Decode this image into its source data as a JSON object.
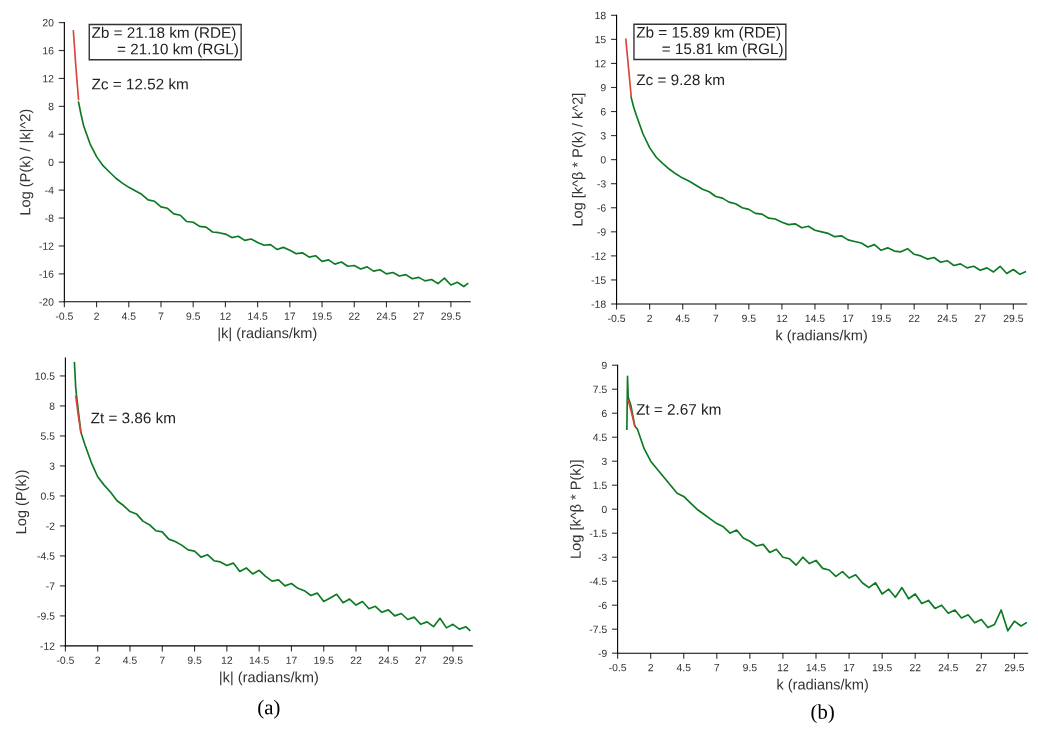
{
  "chart_data": [
    {
      "type": "line",
      "ylabel": "Log (P(k) / |k|^2)",
      "xlabel": "|k| (radians/km)",
      "xlim": [
        -0.5,
        31
      ],
      "xticks": [
        -0.5,
        2,
        4.5,
        7,
        9.5,
        12,
        14.5,
        17,
        19.5,
        22,
        24.5,
        27,
        29.5
      ],
      "ylim": [
        -20,
        20
      ],
      "yticks": [
        -20,
        -16,
        -12,
        -8,
        -4,
        0,
        4,
        8,
        12,
        16,
        20
      ],
      "annotations": [
        "Zb = 21.18 km (RDE)\n      = 21.10 km (RGL)",
        "Zc = 12.52 km"
      ],
      "series": [
        {
          "color": "#0b7a22",
          "x": [
            0.6,
            0.8,
            1,
            1.5,
            2,
            2.5,
            3,
            3.5,
            4,
            4.5,
            5,
            5.5,
            6,
            6.5,
            7,
            7.5,
            8,
            8.5,
            9,
            9.5,
            10,
            10.5,
            11,
            11.5,
            12,
            12.5,
            13,
            13.5,
            14,
            14.5,
            15,
            15.5,
            16,
            16.5,
            17,
            17.5,
            18,
            18.5,
            19,
            19.5,
            20,
            20.5,
            21,
            21.5,
            22,
            22.5,
            23,
            23.5,
            24,
            24.5,
            25,
            25.5,
            26,
            26.5,
            27,
            27.5,
            28,
            28.5,
            29,
            29.5,
            30,
            30.5,
            30.8
          ],
          "values": [
            8.6,
            6.8,
            5.2,
            2.6,
            0.8,
            -0.5,
            -1.4,
            -2.3,
            -3.0,
            -3.6,
            -4.1,
            -4.6,
            -5.4,
            -5.6,
            -6.4,
            -6.6,
            -7.4,
            -7.6,
            -8.5,
            -8.6,
            -9.2,
            -9.3,
            -10.0,
            -10.1,
            -10.3,
            -10.8,
            -10.6,
            -11.2,
            -11.0,
            -11.5,
            -11.9,
            -11.8,
            -12.5,
            -12.2,
            -12.6,
            -13.1,
            -13.0,
            -13.6,
            -13.4,
            -14.2,
            -14.0,
            -14.6,
            -14.3,
            -14.9,
            -14.8,
            -15.3,
            -15.0,
            -15.6,
            -15.4,
            -16.0,
            -15.8,
            -16.3,
            -16.1,
            -16.7,
            -16.5,
            -17.0,
            -16.8,
            -17.4,
            -16.6,
            -17.6,
            -17.2,
            -17.8,
            -17.4
          ]
        },
        {
          "color": "#d9453a",
          "x": [
            0.2,
            0.4,
            0.6
          ],
          "values": [
            18.8,
            13.5,
            9
          ]
        }
      ]
    },
    {
      "type": "line",
      "ylabel": "Log [k^β * P(k) / k^2]",
      "xlabel": "k (radians/km)",
      "xlim": [
        -0.5,
        30.5
      ],
      "xticks": [
        -0.5,
        2,
        4.5,
        7,
        9.5,
        12,
        14.5,
        17,
        19.5,
        22,
        24.5,
        27,
        29.5
      ],
      "ylim": [
        -18,
        18
      ],
      "yticks": [
        -18,
        -15,
        -12,
        -9,
        -6,
        -3,
        0,
        3,
        6,
        9,
        12,
        15,
        18
      ],
      "annotations": [
        "Zb = 15.89 km (RDE)\n      = 15.81 km (RGL)",
        "Zc = 9.28 km"
      ],
      "series": [
        {
          "color": "#0b7a22",
          "x": [
            0.6,
            0.8,
            1,
            1.5,
            2,
            2.5,
            3,
            3.5,
            4,
            4.5,
            5,
            5.5,
            6,
            6.5,
            7,
            7.5,
            8,
            8.5,
            9,
            9.5,
            10,
            10.5,
            11,
            11.5,
            12,
            12.5,
            13,
            13.5,
            14,
            14.5,
            15,
            15.5,
            16,
            16.5,
            17,
            17.5,
            18,
            18.5,
            19,
            19.5,
            20,
            20.5,
            21,
            21.5,
            22,
            22.5,
            23,
            23.5,
            24,
            24.5,
            25,
            25.5,
            26,
            26.5,
            27,
            27.5,
            28,
            28.5,
            29,
            29.5,
            30,
            30.4
          ],
          "values": [
            7.8,
            6.5,
            5.5,
            3.2,
            1.5,
            0.3,
            -0.5,
            -1.2,
            -1.8,
            -2.3,
            -2.7,
            -3.2,
            -3.7,
            -4.0,
            -4.6,
            -4.8,
            -5.3,
            -5.5,
            -6.0,
            -6.2,
            -6.7,
            -6.8,
            -7.3,
            -7.4,
            -7.8,
            -8.1,
            -8.0,
            -8.5,
            -8.3,
            -8.8,
            -9.0,
            -9.2,
            -9.6,
            -9.5,
            -10.0,
            -10.2,
            -10.4,
            -10.9,
            -10.6,
            -11.3,
            -11.0,
            -11.4,
            -11.5,
            -11.1,
            -11.8,
            -12.0,
            -12.4,
            -12.2,
            -12.8,
            -12.6,
            -13.2,
            -13.0,
            -13.5,
            -13.3,
            -13.8,
            -13.5,
            -14.0,
            -13.3,
            -14.2,
            -13.7,
            -14.3,
            -14.0
          ]
        },
        {
          "color": "#d9453a",
          "x": [
            0.2,
            0.4,
            0.6
          ],
          "values": [
            15,
            11.5,
            8
          ]
        }
      ]
    },
    {
      "type": "line",
      "ylabel": "Log (P(k))",
      "xlabel": "|k| (radians/km)",
      "xlim": [
        -0.5,
        31
      ],
      "xticks": [
        -0.5,
        2,
        4.5,
        7,
        9.5,
        12,
        14.5,
        17,
        19.5,
        22,
        24.5,
        27,
        29.5
      ],
      "ylim": [
        -12,
        12
      ],
      "yticks": [
        -12,
        -9.5,
        -7,
        -4.5,
        -2,
        0.5,
        3,
        5.5,
        8,
        10.5
      ],
      "annotations": [
        "Zt = 3.86 km",
        "(a)"
      ],
      "series": [
        {
          "color": "#0b7a22",
          "x": [
            0.2,
            0.3,
            0.4,
            0.7,
            1,
            1.5,
            2,
            2.5,
            3,
            3.5,
            4,
            4.5,
            5,
            5.5,
            6,
            6.5,
            7,
            7.5,
            8,
            8.5,
            9,
            9.5,
            10,
            10.5,
            11,
            11.5,
            12,
            12.5,
            13,
            13.5,
            14,
            14.5,
            15,
            15.5,
            16,
            16.5,
            17,
            17.5,
            18,
            18.5,
            19,
            19.5,
            20,
            20.5,
            21,
            21.5,
            22,
            22.5,
            23,
            23.5,
            24,
            24.5,
            25,
            25.5,
            26,
            26.5,
            27,
            27.5,
            28,
            28.5,
            29,
            29.5,
            30,
            30.5,
            30.8
          ],
          "values": [
            11.6,
            9.5,
            8.5,
            5.8,
            4.8,
            3.3,
            2.1,
            1.4,
            0.8,
            0.1,
            -0.3,
            -0.8,
            -1.0,
            -1.6,
            -1.9,
            -2.4,
            -2.5,
            -3.1,
            -3.3,
            -3.6,
            -4.0,
            -4.1,
            -4.6,
            -4.4,
            -4.9,
            -5.0,
            -5.3,
            -5.1,
            -5.8,
            -5.5,
            -6.0,
            -5.7,
            -6.2,
            -6.6,
            -6.5,
            -7.0,
            -6.8,
            -7.2,
            -7.4,
            -7.8,
            -7.6,
            -8.3,
            -8.0,
            -7.7,
            -8.4,
            -8.1,
            -8.6,
            -8.3,
            -8.9,
            -8.7,
            -9.2,
            -9.0,
            -9.5,
            -9.3,
            -9.8,
            -9.6,
            -10.2,
            -10.0,
            -10.4,
            -9.7,
            -10.5,
            -10.2,
            -10.6,
            -10.4,
            -10.7
          ]
        },
        {
          "color": "#d9453a",
          "x": [
            0.3,
            0.5,
            0.7
          ],
          "values": [
            8.8,
            7.2,
            5.8
          ]
        }
      ]
    },
    {
      "type": "line",
      "ylabel": "Log [k^β * P(k)]",
      "xlabel": "k (radians/km)",
      "xlim": [
        -0.5,
        30.5
      ],
      "xticks": [
        -0.5,
        2,
        4.5,
        7,
        9.5,
        12,
        14.5,
        17,
        19.5,
        22,
        24.5,
        27,
        29.5
      ],
      "ylim": [
        -9,
        9
      ],
      "yticks": [
        -9,
        -7.5,
        -6,
        -4.5,
        -3,
        -1.5,
        0,
        1.5,
        3,
        4.5,
        6,
        7.5,
        9
      ],
      "annotations": [
        "Zt = 2.67 km",
        "(b)"
      ],
      "series": [
        {
          "color": "#0b7a22",
          "x": [
            0.2,
            0.25,
            0.3,
            0.5,
            0.8,
            1,
            1.5,
            2,
            2.5,
            3,
            3.5,
            4,
            4.5,
            5,
            5.5,
            6,
            6.5,
            7,
            7.5,
            8,
            8.5,
            9,
            9.5,
            10,
            10.5,
            11,
            11.5,
            12,
            12.5,
            13,
            13.5,
            14,
            14.5,
            15,
            15.5,
            16,
            16.5,
            17,
            17.5,
            18,
            18.5,
            19,
            19.5,
            20,
            20.5,
            21,
            21.5,
            22,
            22.5,
            23,
            23.5,
            24,
            24.5,
            25,
            25.5,
            26,
            26.5,
            27,
            27.5,
            28,
            28.5,
            29,
            29.5,
            30,
            30.4
          ],
          "values": [
            5.0,
            8.3,
            7.0,
            6.5,
            5.2,
            5.0,
            3.8,
            3.0,
            2.5,
            2.0,
            1.5,
            1.0,
            0.8,
            0.4,
            0.0,
            -0.3,
            -0.6,
            -0.9,
            -1.1,
            -1.5,
            -1.3,
            -1.8,
            -2.0,
            -2.3,
            -2.2,
            -2.7,
            -2.5,
            -3.0,
            -3.1,
            -3.5,
            -3.0,
            -3.4,
            -3.2,
            -3.7,
            -3.8,
            -4.2,
            -3.9,
            -4.3,
            -4.1,
            -4.6,
            -4.9,
            -4.6,
            -5.3,
            -5.0,
            -5.5,
            -4.9,
            -5.6,
            -5.3,
            -5.9,
            -5.7,
            -6.2,
            -6.0,
            -6.5,
            -6.3,
            -6.8,
            -6.6,
            -7.1,
            -6.9,
            -7.4,
            -7.2,
            -6.3,
            -7.6,
            -7.0,
            -7.3,
            -7.1
          ]
        },
        {
          "color": "#d9453a",
          "x": [
            0.3,
            0.5,
            0.8
          ],
          "values": [
            6.8,
            6.2,
            5.2
          ]
        }
      ]
    }
  ]
}
